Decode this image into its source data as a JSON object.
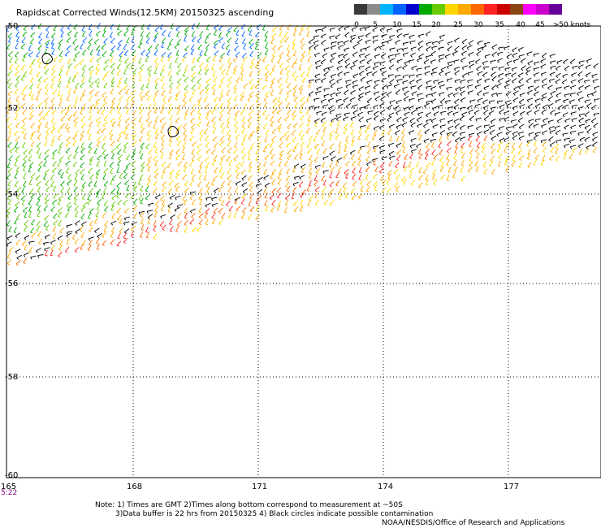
{
  "title": "Rapidscat Corrected Winds(12.5KM) 20150325 ascending",
  "legend": {
    "colors": [
      "#3a3a3a",
      "#8c8c8c",
      "#00b4ff",
      "#0064ff",
      "#0000cc",
      "#00aa00",
      "#66cc00",
      "#ffd700",
      "#ffaa00",
      "#ff6600",
      "#ff2222",
      "#cc0000",
      "#8b4513",
      "#ff00ff",
      "#cc00cc",
      "#660099"
    ],
    "labels": [
      "0",
      "5",
      "10",
      "15",
      "20",
      "25",
      "30",
      "35",
      "40",
      "45",
      ">50 knots"
    ]
  },
  "axes": {
    "lat_labels": [
      "-50",
      "-52",
      "-54",
      "-56",
      "-58",
      "-60"
    ],
    "lon_labels": [
      "165",
      "168",
      "171",
      "174",
      "177"
    ]
  },
  "time_label": "5:22",
  "notes": {
    "line1": "Note: 1) Times are GMT 2)Times along bottom correspond to measurement at ~50S",
    "line2": "3)Data buffer is 22 hrs from 20150325 4) Black circles indicate possible contamination",
    "credit": "NOAA/NESDIS/Office of Research and Applications"
  }
}
